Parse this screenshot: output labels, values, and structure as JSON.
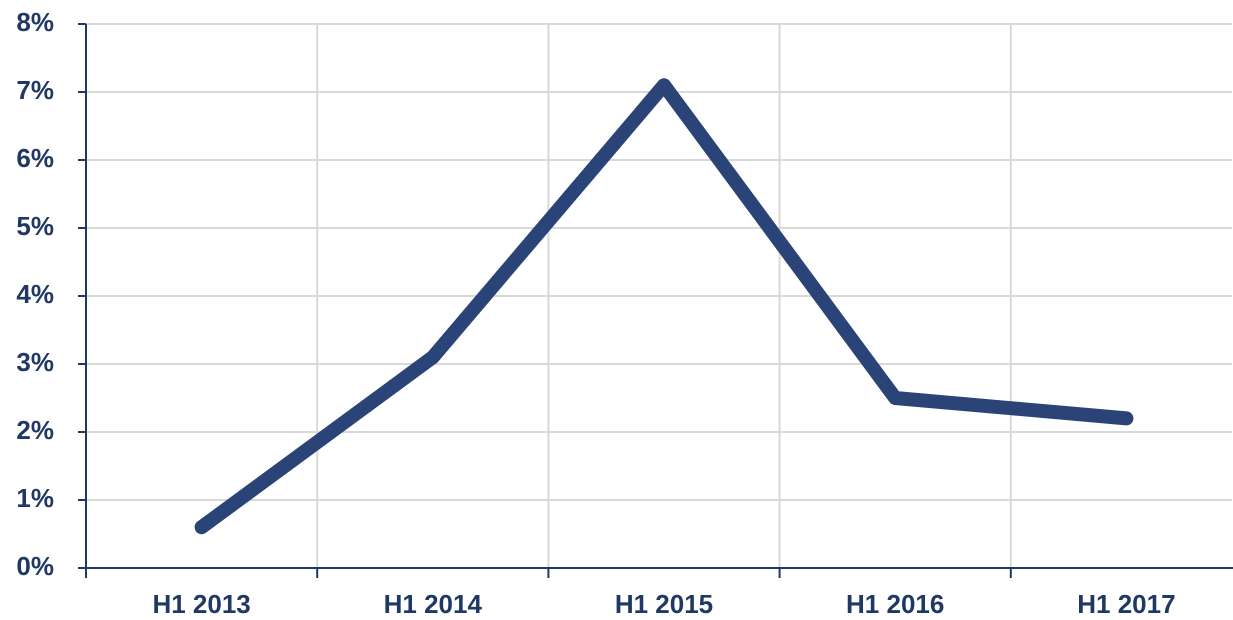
{
  "chart_data": {
    "type": "line",
    "categories": [
      "H1 2013",
      "H1 2014",
      "H1 2015",
      "H1 2016",
      "H1 2017"
    ],
    "series": [
      {
        "name": null,
        "color": "#2b4478",
        "values": [
          0.6,
          3.1,
          7.1,
          2.5,
          2.2
        ]
      }
    ],
    "ylim": [
      0,
      8
    ],
    "yticks": [
      {
        "value": 0,
        "label": "0%"
      },
      {
        "value": 1,
        "label": "1%"
      },
      {
        "value": 2,
        "label": "2%"
      },
      {
        "value": 3,
        "label": "3%"
      },
      {
        "value": 4,
        "label": "4%"
      },
      {
        "value": 5,
        "label": "5%"
      },
      {
        "value": 6,
        "label": "6%"
      },
      {
        "value": 7,
        "label": "7%"
      },
      {
        "value": 8,
        "label": "8%"
      }
    ],
    "grid": true
  }
}
